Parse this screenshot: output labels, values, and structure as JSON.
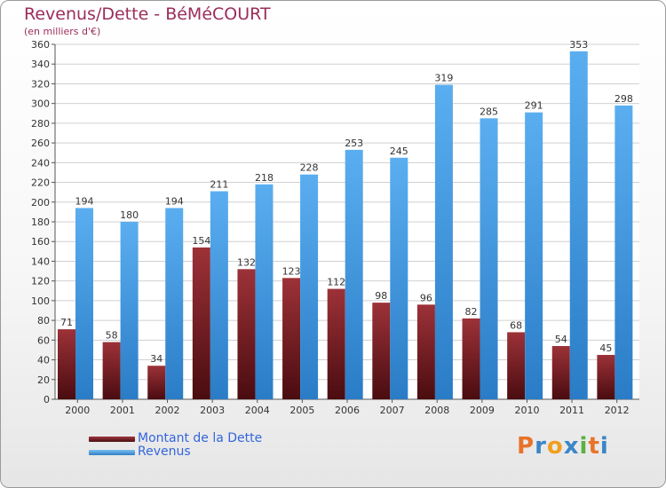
{
  "chart_data": {
    "type": "bar",
    "title": "Revenus/Dette - BéMéCOURT",
    "subtitle": "(en milliers d'€)",
    "categories": [
      "2000",
      "2001",
      "2002",
      "2003",
      "2004",
      "2005",
      "2006",
      "2007",
      "2008",
      "2009",
      "2010",
      "2011",
      "2012"
    ],
    "series": [
      {
        "name": "Montant de la Dette",
        "color": "#7a1f24",
        "values": [
          71,
          58,
          34,
          154,
          132,
          123,
          112,
          98,
          96,
          82,
          68,
          54,
          45
        ]
      },
      {
        "name": "Revenus",
        "color": "#4d9fe0",
        "values": [
          194,
          180,
          194,
          211,
          218,
          228,
          253,
          245,
          319,
          285,
          291,
          353,
          298
        ]
      }
    ],
    "ylim": [
      0,
      360
    ],
    "ytick_step": 20,
    "grid": true,
    "legend_position": "bottom-left"
  },
  "logo": {
    "letters": [
      "P",
      "r",
      "o",
      "x",
      "i",
      "t",
      "i"
    ],
    "colors": [
      "#e8732a",
      "#3a86c8",
      "#f0a020",
      "#3a86c8",
      "#5ab040",
      "#e8732a",
      "#3a86c8"
    ]
  }
}
